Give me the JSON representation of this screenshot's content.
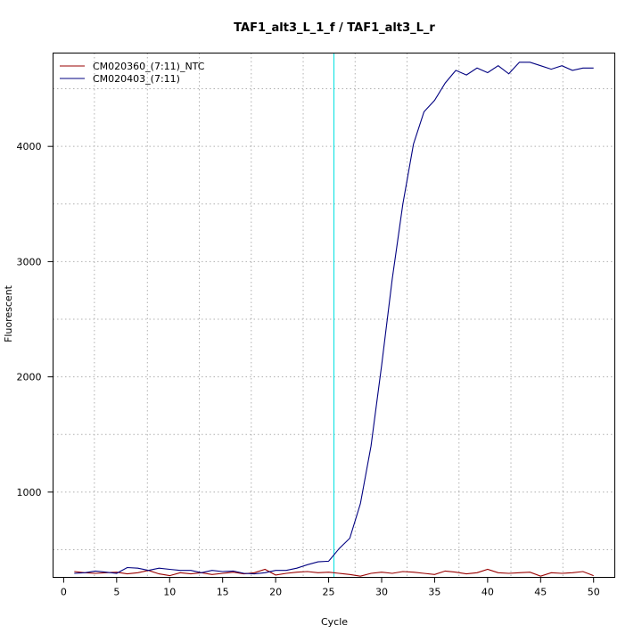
{
  "chart_data": {
    "type": "line",
    "title": "TAF1_alt3_L_1_f / TAF1_alt3_L_r",
    "xlabel": "Cycle",
    "ylabel": "Fluorescent",
    "xlim": [
      -1,
      52
    ],
    "ylim": [
      260,
      4810
    ],
    "xticks": [
      0,
      5,
      10,
      15,
      20,
      25,
      30,
      35,
      40,
      45,
      50
    ],
    "yticks": [
      1000,
      2000,
      3000,
      4000
    ],
    "x_grid": [
      2.9,
      7.9,
      12.8,
      17.7,
      22.6,
      27.5,
      32.4,
      37.3,
      42.2,
      47.1
    ],
    "y_grid": [
      500,
      1000,
      1500,
      2000,
      2500,
      3000,
      3500,
      4000,
      4500
    ],
    "grid": true,
    "threshold": {
      "x": 25.5,
      "color": "#00e0e0"
    },
    "legend_position": "top-left",
    "x": [
      1,
      2,
      3,
      4,
      5,
      6,
      7,
      8,
      9,
      10,
      11,
      12,
      13,
      14,
      15,
      16,
      17,
      18,
      19,
      20,
      21,
      22,
      23,
      24,
      25,
      26,
      27,
      28,
      29,
      30,
      31,
      32,
      33,
      34,
      35,
      36,
      37,
      38,
      39,
      40,
      41,
      42,
      43,
      44,
      45,
      46,
      47,
      48,
      49,
      50
    ],
    "series": [
      {
        "name": "CM020360_(7:11)_NTC",
        "color": "#990000",
        "values": [
          310,
          300,
          295,
          300,
          305,
          290,
          300,
          320,
          290,
          275,
          300,
          290,
          300,
          285,
          295,
          305,
          290,
          300,
          330,
          280,
          295,
          305,
          310,
          300,
          305,
          295,
          285,
          270,
          295,
          305,
          295,
          310,
          305,
          295,
          285,
          315,
          305,
          290,
          300,
          330,
          300,
          295,
          300,
          305,
          270,
          300,
          295,
          300,
          310,
          275
        ]
      },
      {
        "name": "CM020403_(7:11)",
        "color": "#000080",
        "values": [
          295,
          300,
          315,
          305,
          295,
          345,
          340,
          320,
          340,
          330,
          320,
          320,
          300,
          320,
          310,
          315,
          295,
          290,
          300,
          320,
          320,
          340,
          370,
          395,
          400,
          510,
          600,
          900,
          1400,
          2100,
          2850,
          3500,
          4020,
          4300,
          4400,
          4550,
          4660,
          4620,
          4680,
          4640,
          4700,
          4630,
          4730,
          4730,
          4700,
          4670,
          4700,
          4660,
          4680,
          4680
        ]
      }
    ]
  }
}
